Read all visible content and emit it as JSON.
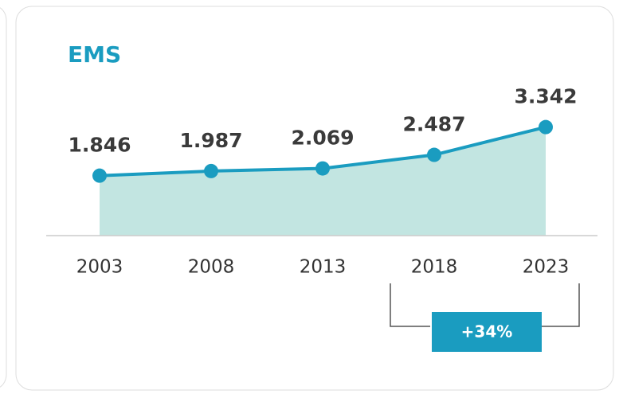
{
  "chart_data": {
    "type": "line",
    "title": "EMS",
    "categories": [
      "2003",
      "2008",
      "2013",
      "2018",
      "2023"
    ],
    "values": [
      1.846,
      1.987,
      2.069,
      2.487,
      3.342
    ],
    "color": "#1a9cc0",
    "area_color": "#c2e5e1",
    "ylim": [
      0,
      5
    ],
    "annotation": "+34%"
  }
}
